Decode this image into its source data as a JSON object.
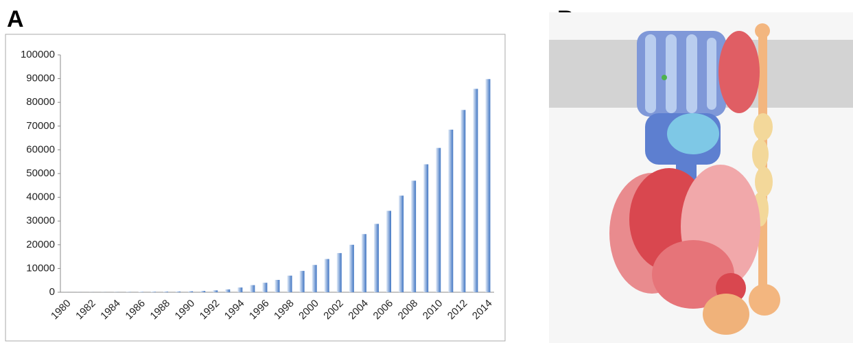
{
  "panel_labels": [
    "A",
    "B"
  ],
  "chart_data": {
    "type": "bar",
    "categories": [
      "1980",
      null,
      "1982",
      null,
      "1984",
      null,
      "1986",
      null,
      "1988",
      null,
      "1990",
      null,
      "1992",
      null,
      "1994",
      null,
      "1996",
      null,
      "1998",
      null,
      "2000",
      null,
      "2002",
      null,
      "2004",
      null,
      "2006",
      null,
      "2008",
      null,
      "2010",
      null,
      "2012",
      null,
      "2014"
    ],
    "values": [
      13,
      20,
      30,
      40,
      60,
      100,
      150,
      200,
      250,
      300,
      400,
      550,
      800,
      1200,
      2000,
      3000,
      4000,
      5200,
      7000,
      9000,
      11500,
      14000,
      16500,
      20000,
      24500,
      28800,
      34300,
      40700,
      47000,
      53900,
      60800,
      68500,
      76800,
      85700,
      89800
    ],
    "color": "#3f74c2",
    "ylim": [
      0,
      100000
    ],
    "yticks": [
      0,
      10000,
      20000,
      30000,
      40000,
      50000,
      60000,
      70000,
      80000,
      90000,
      100000
    ],
    "grid": false
  }
}
